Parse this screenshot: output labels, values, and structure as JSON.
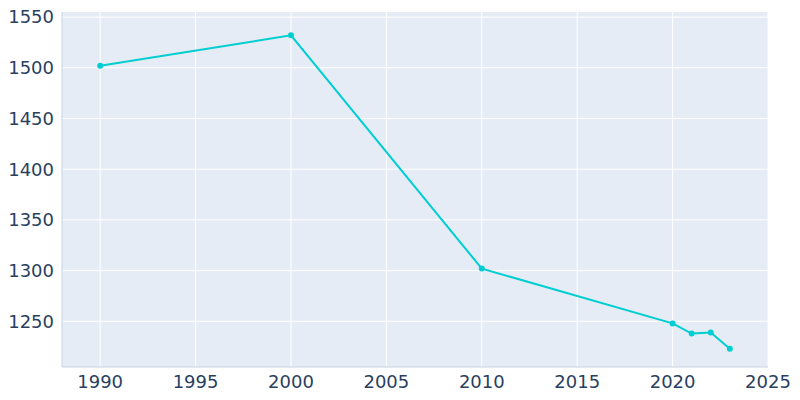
{
  "chart_data": {
    "type": "line",
    "x": [
      1990,
      2000,
      2010,
      2020,
      2021,
      2022,
      2023
    ],
    "values": [
      1502,
      1532,
      1302,
      1248,
      1238,
      1239,
      1223
    ],
    "color": "#00ced1",
    "marker": "circle",
    "xlim": [
      1988,
      2025
    ],
    "xticks": [
      1990,
      1995,
      2000,
      2005,
      2010,
      2015,
      2020,
      2025
    ],
    "ylim": [
      1205,
      1555
    ],
    "yticks": [
      1250,
      1300,
      1350,
      1400,
      1450,
      1500,
      1550
    ],
    "grid": true
  }
}
